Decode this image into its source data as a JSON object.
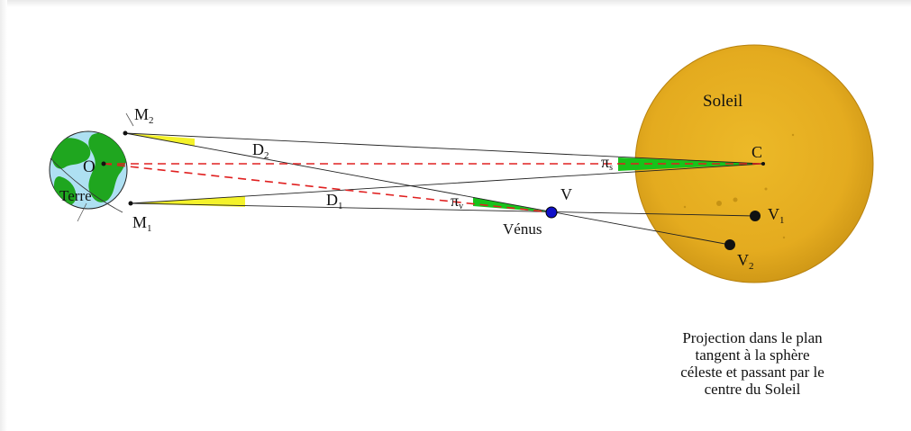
{
  "labels": {
    "soleil": "Soleil",
    "terre": "Terre",
    "venus_name": "Vénus",
    "V": "V",
    "C": "C",
    "O": "O",
    "M": "M",
    "D": "D",
    "V_point": "V",
    "pi": "π",
    "sub_1": "1",
    "sub_2": "2",
    "sub_s": "s",
    "sub_v": "v"
  },
  "caption": {
    "line1": "Projection dans le plan",
    "line2": "tangent à la sphère",
    "line3": "céleste et passant par le",
    "line4": "centre du Soleil"
  },
  "colors": {
    "sun": "#e6b020",
    "sun_edge": "#c78e12",
    "earth_ocean": "#aee0f2",
    "earth_land": "#1fa61f",
    "parallax_green": "#18c21a",
    "parallax_yellow": "#f4f22a",
    "dash_red": "#e02020",
    "venus_blue": "#1010c8"
  }
}
